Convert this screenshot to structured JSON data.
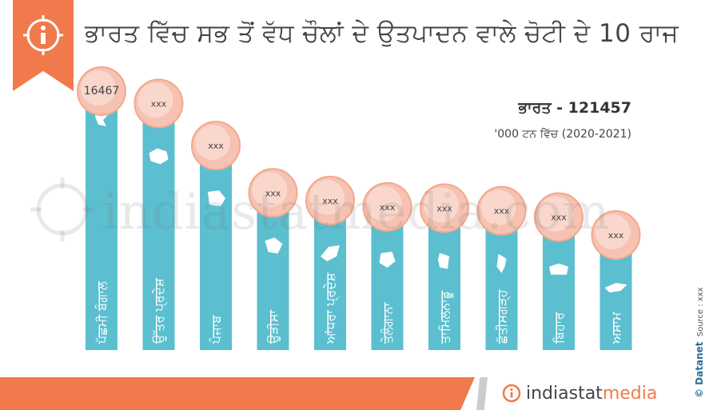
{
  "title": "ਭਾਰਤ ਵਿੱਚ ਸਭ ਤੋਂ ਵੱਧ ਚੌਲਾਂ ਦੇ ਉਤਪਾਦਨ ਵਾਲੇ ਚੋਟੀ ਦੇ 10 ਰਾਜ",
  "total_label": "ਭਾਰਤ - 121457",
  "unit_label": "'000 ਟਨ ਵਿੱਚ (2020-2021)",
  "watermark": "indiastatmedia.com",
  "brand": {
    "main": "indiastat",
    "accent": "media"
  },
  "credit": {
    "copyright": "© Datanet",
    "source": "Source : xxx"
  },
  "colors": {
    "bar": "#5bbfcf",
    "accent": "#f07a4c",
    "bubble": "#f6c2b1",
    "bubble_edge": "#f3a88e"
  },
  "icons": {
    "info": "info-icon",
    "state_shapes": "state-map-icon"
  },
  "chart_data": {
    "type": "bar",
    "categories": [
      "ਪੱਛਮੀ ਬੰਗਾਲ",
      "ਉੱਤਰ ਪ੍ਰਦੇਸ਼",
      "ਪੰਜਾਬ",
      "ਉੜੀਸਾ",
      "ਆਂਧਰਾ ਪ੍ਰਦੇਸ਼",
      "ਤੇਲੰਗਾਨਾ",
      "ਤਾਮਿਲਨਾਡੂ",
      "ਛੱਤੀਸਗੜ੍ਹ",
      "ਬਿਹਾਰ",
      "ਅਸਾਮ"
    ],
    "value_labels": [
      "16467",
      "xxx",
      "xxx",
      "xxx",
      "xxx",
      "xxx",
      "xxx",
      "xxx",
      "xxx",
      "xxx"
    ],
    "values": [
      16467,
      15500,
      12200,
      8500,
      7900,
      7400,
      7300,
      7100,
      6600,
      5200
    ]
  }
}
